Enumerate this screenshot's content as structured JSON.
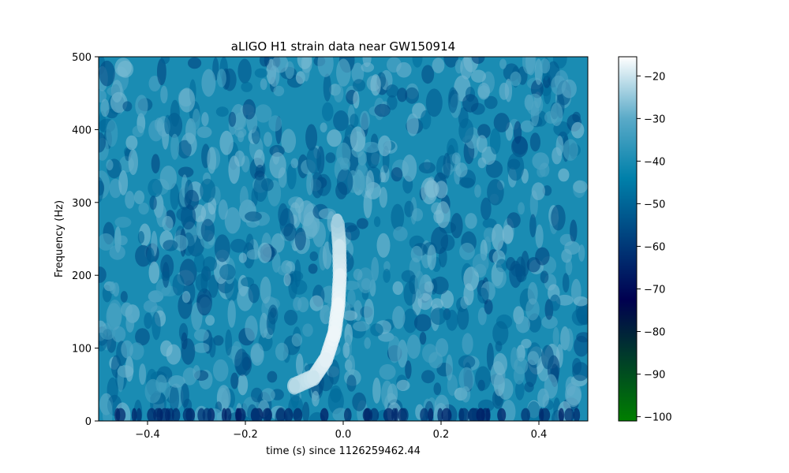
{
  "chart_data": {
    "type": "heatmap",
    "title": "aLIGO H1 strain data near GW150914",
    "xlabel": "time (s) since 1126259462.44",
    "ylabel": "Frequency (Hz)",
    "xlim": [
      -0.5,
      0.5
    ],
    "ylim": [
      0,
      500
    ],
    "x_ticks": [
      {
        "value": -0.4,
        "label": "−0.4"
      },
      {
        "value": -0.2,
        "label": "−0.2"
      },
      {
        "value": 0.0,
        "label": "0.0"
      },
      {
        "value": 0.2,
        "label": "0.2"
      },
      {
        "value": 0.4,
        "label": "0.4"
      }
    ],
    "y_ticks": [
      {
        "value": 0,
        "label": "0"
      },
      {
        "value": 100,
        "label": "100"
      },
      {
        "value": 200,
        "label": "200"
      },
      {
        "value": 300,
        "label": "300"
      },
      {
        "value": 400,
        "label": "400"
      },
      {
        "value": 500,
        "label": "500"
      }
    ],
    "colorbar": {
      "colormap": "ocean",
      "range": [
        -101,
        -15.5
      ],
      "ticks": [
        {
          "value": -20,
          "label": "−20"
        },
        {
          "value": -30,
          "label": "−30"
        },
        {
          "value": -40,
          "label": "−40"
        },
        {
          "value": -50,
          "label": "−50"
        },
        {
          "value": -60,
          "label": "−60"
        },
        {
          "value": -70,
          "label": "−70"
        },
        {
          "value": -80,
          "label": "−80"
        },
        {
          "value": -90,
          "label": "−90"
        },
        {
          "value": -100,
          "label": "−100"
        }
      ],
      "stops": [
        {
          "value": -101,
          "color": "#007f00"
        },
        {
          "value": -72.5,
          "color": "#000050"
        },
        {
          "value": -44,
          "color": "#0080aa"
        },
        {
          "value": -30,
          "color": "#5aaac8"
        },
        {
          "value": -15.5,
          "color": "#ffffff"
        }
      ]
    },
    "background_level": -40,
    "chirp_track": [
      {
        "t": -0.1,
        "f": 48,
        "level": -22
      },
      {
        "t": -0.06,
        "f": 60,
        "level": -20
      },
      {
        "t": -0.035,
        "f": 85,
        "level": -18
      },
      {
        "t": -0.018,
        "f": 120,
        "level": -17
      },
      {
        "t": -0.01,
        "f": 160,
        "level": -17
      },
      {
        "t": -0.007,
        "f": 200,
        "level": -18
      },
      {
        "t": -0.008,
        "f": 240,
        "level": -20
      },
      {
        "t": -0.012,
        "f": 275,
        "level": -24
      }
    ]
  }
}
